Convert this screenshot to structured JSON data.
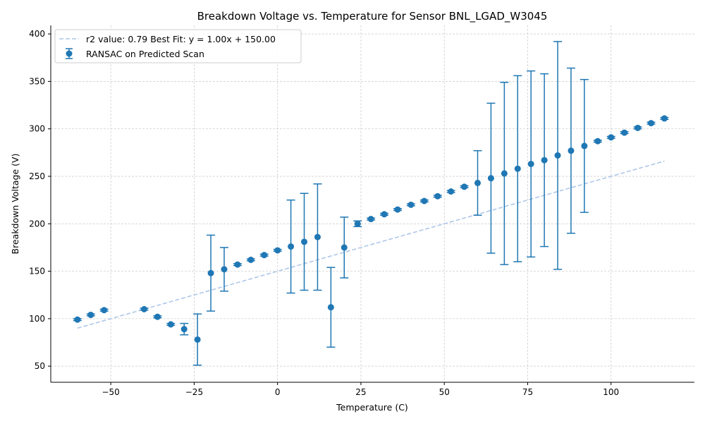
{
  "chart_data": {
    "type": "scatter",
    "title": "Breakdown Voltage vs. Temperature for Sensor BNL_LGAD_W3045",
    "xlabel": "Temperature (C)",
    "ylabel": "Breakdown Voltage (V)",
    "xlim": [
      -68,
      125
    ],
    "ylim": [
      33,
      409
    ],
    "xticks": [
      -50,
      -25,
      0,
      25,
      50,
      75,
      100
    ],
    "xtick_labels": [
      "−50",
      "−25",
      "0",
      "25",
      "50",
      "75",
      "100"
    ],
    "yticks": [
      50,
      100,
      150,
      200,
      250,
      300,
      350,
      400
    ],
    "ytick_labels": [
      "50",
      "100",
      "150",
      "200",
      "250",
      "300",
      "350",
      "400"
    ],
    "grid": true,
    "legend_position": "top-left",
    "colors": {
      "points": "#1f77b4",
      "fit_line": "#aec7e8",
      "grid": "#c8c8c8"
    },
    "fit_line": {
      "name": "r2 value: 0.79 Best Fit: y = 1.00x + 150.00",
      "x": [
        -60,
        116
      ],
      "y": [
        90,
        266
      ]
    },
    "series": [
      {
        "name": "RANSAC on Predicted Scan",
        "points": [
          {
            "x": -60,
            "y": 99,
            "yerr": 1
          },
          {
            "x": -56,
            "y": 104,
            "yerr": 1
          },
          {
            "x": -52,
            "y": 109,
            "yerr": 1
          },
          {
            "x": -40,
            "y": 110,
            "yerr": 1
          },
          {
            "x": -36,
            "y": 102,
            "yerr": 1
          },
          {
            "x": -32,
            "y": 94,
            "yerr": 1
          },
          {
            "x": -28,
            "y": 89,
            "yerr": 6
          },
          {
            "x": -24,
            "y": 78,
            "yerr": 27
          },
          {
            "x": -20,
            "y": 148,
            "yerr": 40
          },
          {
            "x": -16,
            "y": 152,
            "yerr": 23
          },
          {
            "x": -12,
            "y": 157,
            "yerr": 1
          },
          {
            "x": -8,
            "y": 162,
            "yerr": 1
          },
          {
            "x": -4,
            "y": 167,
            "yerr": 1
          },
          {
            "x": 0,
            "y": 172,
            "yerr": 1
          },
          {
            "x": 4,
            "y": 176,
            "yerr": 49
          },
          {
            "x": 8,
            "y": 181,
            "yerr": 51
          },
          {
            "x": 12,
            "y": 186,
            "yerr": 56
          },
          {
            "x": 16,
            "y": 112,
            "yerr": 42
          },
          {
            "x": 20,
            "y": 175,
            "yerr": 32
          },
          {
            "x": 24,
            "y": 200,
            "yerr": 3
          },
          {
            "x": 28,
            "y": 205,
            "yerr": 1
          },
          {
            "x": 32,
            "y": 210,
            "yerr": 1
          },
          {
            "x": 36,
            "y": 215,
            "yerr": 1
          },
          {
            "x": 40,
            "y": 220,
            "yerr": 1
          },
          {
            "x": 44,
            "y": 224,
            "yerr": 1
          },
          {
            "x": 48,
            "y": 229,
            "yerr": 1
          },
          {
            "x": 52,
            "y": 234,
            "yerr": 1
          },
          {
            "x": 56,
            "y": 239,
            "yerr": 1
          },
          {
            "x": 60,
            "y": 243,
            "yerr": 34
          },
          {
            "x": 64,
            "y": 248,
            "yerr": 79
          },
          {
            "x": 68,
            "y": 253,
            "yerr": 96
          },
          {
            "x": 72,
            "y": 258,
            "yerr": 98
          },
          {
            "x": 76,
            "y": 263,
            "yerr": 98
          },
          {
            "x": 80,
            "y": 267,
            "yerr": 91
          },
          {
            "x": 84,
            "y": 272,
            "yerr": 120
          },
          {
            "x": 88,
            "y": 277,
            "yerr": 87
          },
          {
            "x": 92,
            "y": 282,
            "yerr": 70
          },
          {
            "x": 96,
            "y": 287,
            "yerr": 1
          },
          {
            "x": 100,
            "y": 291,
            "yerr": 1
          },
          {
            "x": 104,
            "y": 296,
            "yerr": 1
          },
          {
            "x": 108,
            "y": 301,
            "yerr": 1
          },
          {
            "x": 112,
            "y": 306,
            "yerr": 1
          },
          {
            "x": 116,
            "y": 311,
            "yerr": 1
          }
        ]
      }
    ]
  }
}
